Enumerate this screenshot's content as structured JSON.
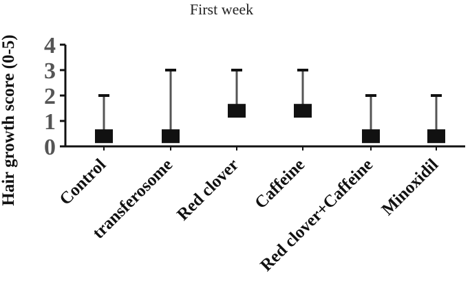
{
  "chart_data": {
    "type": "scatter",
    "title": "First week",
    "ylabel": "Hair growth score (0-5)",
    "xlabel": "",
    "categories": [
      "Control",
      "transferosome",
      "Red clover",
      "Caffeine",
      "Red clover+Caffeine",
      "Minoxidil"
    ],
    "values": [
      0.4,
      0.4,
      1.4,
      1.4,
      0.4,
      0.4
    ],
    "error_upper": [
      2,
      3,
      3,
      3,
      2,
      2
    ],
    "ylim": [
      0,
      4
    ],
    "yticks": [
      "0",
      "1",
      "2",
      "3",
      "4"
    ],
    "grid": false,
    "colors": {
      "marker": "#111111",
      "error_bar": "#555555",
      "axis": "#111111"
    }
  }
}
